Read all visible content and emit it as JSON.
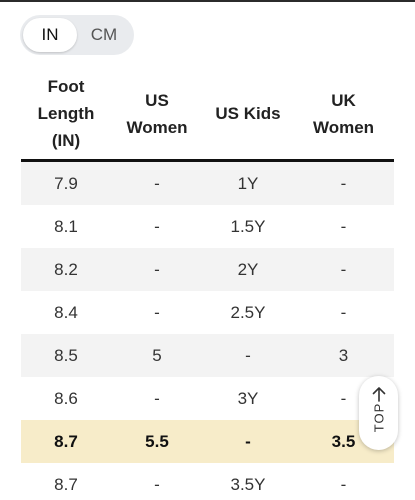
{
  "unit_toggle": {
    "options": [
      "IN",
      "CM"
    ],
    "selected": "IN"
  },
  "table": {
    "headers": [
      [
        "Foot",
        "Length",
        "(IN)"
      ],
      [
        "US",
        "Women"
      ],
      [
        "US Kids"
      ],
      [
        "UK",
        "Women"
      ]
    ],
    "rows": [
      {
        "cells": [
          "7.9",
          "-",
          "1Y",
          "-"
        ],
        "highlighted": false
      },
      {
        "cells": [
          "8.1",
          "-",
          "1.5Y",
          "-"
        ],
        "highlighted": false
      },
      {
        "cells": [
          "8.2",
          "-",
          "2Y",
          "-"
        ],
        "highlighted": false
      },
      {
        "cells": [
          "8.4",
          "-",
          "2.5Y",
          "-"
        ],
        "highlighted": false
      },
      {
        "cells": [
          "8.5",
          "5",
          "-",
          "3"
        ],
        "highlighted": false
      },
      {
        "cells": [
          "8.6",
          "-",
          "3Y",
          "-"
        ],
        "highlighted": false
      },
      {
        "cells": [
          "8.7",
          "5.5",
          "-",
          "3.5"
        ],
        "highlighted": true
      },
      {
        "cells": [
          "8.7",
          "-",
          "3.5Y",
          "-"
        ],
        "highlighted": false
      }
    ]
  },
  "top_button": {
    "label": "TOP",
    "icon": "arrow-up-icon"
  },
  "colors": {
    "highlight_row": "#f7ecc9",
    "alt_row": "#f3f3f3",
    "toggle_track": "#e9ebee"
  }
}
